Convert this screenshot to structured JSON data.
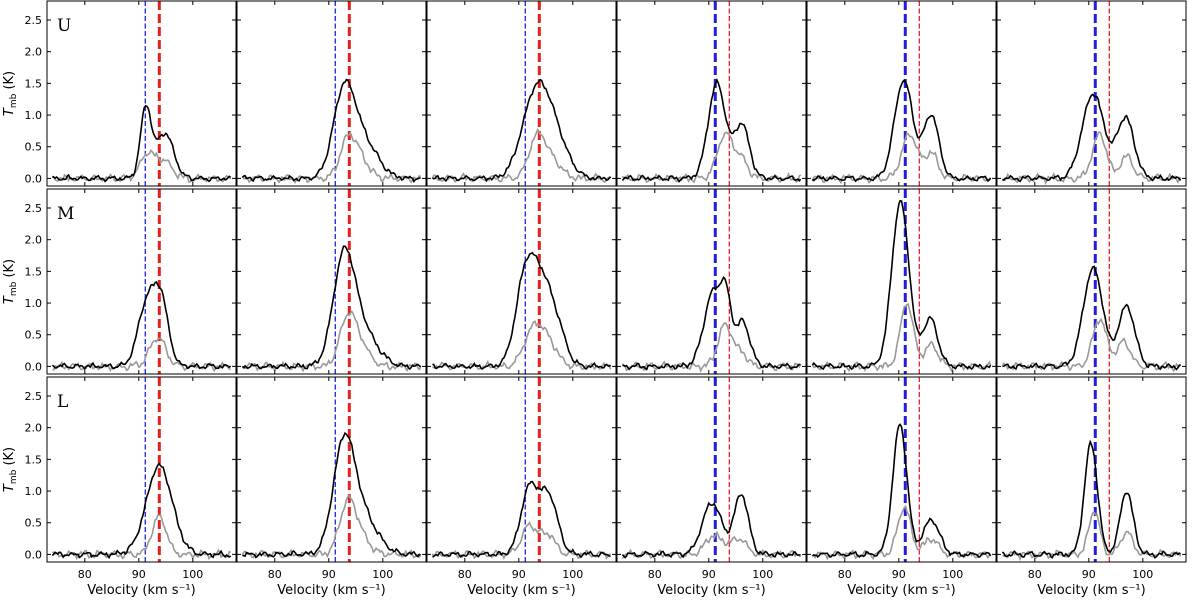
{
  "chart_data": {
    "type": "line",
    "layout": {
      "rows": 3,
      "cols": 6,
      "sharex": true,
      "sharey": true
    },
    "row_labels": [
      "U",
      "M",
      "L"
    ],
    "xlabel": "Velocity (km s⁻¹)",
    "ylabel_main": "T",
    "ylabel_sub": "mb",
    "ylabel_unit": " (K)",
    "xlim": [
      73,
      108
    ],
    "ylim": [
      -0.12,
      2.8
    ],
    "xticks": [
      80,
      90,
      100
    ],
    "yticks": [
      0.0,
      0.5,
      1.0,
      1.5,
      2.0,
      2.5
    ],
    "ytick_labels": [
      "0.0",
      "0.5",
      "1.0",
      "1.5",
      "2.0",
      "2.5"
    ],
    "reference_lines": [
      {
        "velocity": 91.2,
        "color": "#1f1fdc",
        "style": "dashed"
      },
      {
        "velocity": 93.8,
        "color": "#e8201c",
        "style": "dashed"
      }
    ],
    "emphasized_line_by_column": [
      "red",
      "red",
      "red",
      "blue",
      "blue",
      "blue"
    ],
    "series_colors": {
      "primary": "#000000",
      "secondary": "#999999"
    },
    "panels": [
      {
        "row": 0,
        "col": 0,
        "primary": [
          [
            91.3,
            1.1,
            1.0
          ],
          [
            94.8,
            0.72,
            1.6
          ]
        ],
        "secondary": [
          [
            91.5,
            0.35,
            1.3
          ],
          [
            94.5,
            0.28,
            1.6
          ]
        ]
      },
      {
        "row": 0,
        "col": 1,
        "primary": [
          [
            92.8,
            1.32,
            2.0
          ],
          [
            96.5,
            0.55,
            2.6
          ]
        ],
        "secondary": [
          [
            93.6,
            0.6,
            1.5
          ],
          [
            96.0,
            0.25,
            1.6
          ]
        ]
      },
      {
        "row": 0,
        "col": 2,
        "primary": [
          [
            93.3,
            1.36,
            2.6
          ],
          [
            97.0,
            0.45,
            2.4
          ]
        ],
        "secondary": [
          [
            93.5,
            0.68,
            1.6
          ],
          [
            96.5,
            0.22,
            1.6
          ]
        ]
      },
      {
        "row": 0,
        "col": 3,
        "primary": [
          [
            91.5,
            1.5,
            1.6
          ],
          [
            96.1,
            0.85,
            1.4
          ]
        ],
        "secondary": [
          [
            93.0,
            0.7,
            1.4
          ],
          [
            96.0,
            0.3,
            1.2
          ]
        ]
      },
      {
        "row": 0,
        "col": 4,
        "primary": [
          [
            90.9,
            1.55,
            1.7
          ],
          [
            96.0,
            1.0,
            1.4
          ]
        ],
        "secondary": [
          [
            92.0,
            0.7,
            1.4
          ],
          [
            96.0,
            0.4,
            1.2
          ]
        ]
      },
      {
        "row": 0,
        "col": 5,
        "primary": [
          [
            90.8,
            1.34,
            2.0
          ],
          [
            96.8,
            0.95,
            1.6
          ]
        ],
        "secondary": [
          [
            92.0,
            0.7,
            1.3
          ],
          [
            97.0,
            0.35,
            1.2
          ]
        ]
      },
      {
        "row": 1,
        "col": 0,
        "primary": [
          [
            91.4,
            0.95,
            1.6
          ],
          [
            94.1,
            1.0,
            1.4
          ]
        ],
        "secondary": [
          [
            93.5,
            0.45,
            1.5
          ]
        ]
      },
      {
        "row": 1,
        "col": 1,
        "primary": [
          [
            92.8,
            1.68,
            2.0
          ],
          [
            96.5,
            0.5,
            2.6
          ]
        ],
        "secondary": [
          [
            93.5,
            0.75,
            1.5
          ],
          [
            96.0,
            0.3,
            1.6
          ]
        ]
      },
      {
        "row": 1,
        "col": 2,
        "primary": [
          [
            91.2,
            1.35,
            1.8
          ],
          [
            94.5,
            1.2,
            2.0
          ],
          [
            97.5,
            0.35,
            1.6
          ]
        ],
        "secondary": [
          [
            93.0,
            0.65,
            1.8
          ],
          [
            96.0,
            0.25,
            1.5
          ]
        ]
      },
      {
        "row": 1,
        "col": 3,
        "primary": [
          [
            90.8,
            1.15,
            1.7
          ],
          [
            93.2,
            0.85,
            1.0
          ],
          [
            96.3,
            0.7,
            1.3
          ]
        ],
        "secondary": [
          [
            93.0,
            0.65,
            1.3
          ],
          [
            96.0,
            0.2,
            1.2
          ]
        ]
      },
      {
        "row": 1,
        "col": 4,
        "primary": [
          [
            90.3,
            2.6,
            1.6
          ],
          [
            95.8,
            0.75,
            1.4
          ]
        ],
        "secondary": [
          [
            91.5,
            1.0,
            1.2
          ],
          [
            96.0,
            0.35,
            1.2
          ]
        ]
      },
      {
        "row": 1,
        "col": 5,
        "primary": [
          [
            90.8,
            1.55,
            1.8
          ],
          [
            97.0,
            0.95,
            1.5
          ]
        ],
        "secondary": [
          [
            92.0,
            0.75,
            1.3
          ],
          [
            96.5,
            0.4,
            1.2
          ]
        ]
      },
      {
        "row": 2,
        "col": 0,
        "primary": [
          [
            93.8,
            1.4,
            2.4
          ]
        ],
        "secondary": [
          [
            93.8,
            0.6,
            1.3
          ]
        ]
      },
      {
        "row": 2,
        "col": 1,
        "primary": [
          [
            92.8,
            1.7,
            2.0
          ],
          [
            96.5,
            0.55,
            2.6
          ]
        ],
        "secondary": [
          [
            93.5,
            0.8,
            1.5
          ],
          [
            96.0,
            0.25,
            1.6
          ]
        ]
      },
      {
        "row": 2,
        "col": 2,
        "primary": [
          [
            92.0,
            1.05,
            1.6
          ],
          [
            95.6,
            0.9,
            1.6
          ]
        ],
        "secondary": [
          [
            92.0,
            0.45,
            1.5
          ],
          [
            95.5,
            0.3,
            1.3
          ]
        ]
      },
      {
        "row": 2,
        "col": 3,
        "primary": [
          [
            90.6,
            0.82,
            1.8
          ],
          [
            96.0,
            0.95,
            1.3
          ]
        ],
        "secondary": [
          [
            91.0,
            0.3,
            1.6
          ],
          [
            95.5,
            0.25,
            1.4
          ]
        ]
      },
      {
        "row": 2,
        "col": 4,
        "primary": [
          [
            90.2,
            2.05,
            1.3
          ],
          [
            96.0,
            0.55,
            1.5
          ]
        ],
        "secondary": [
          [
            91.0,
            0.75,
            1.2
          ],
          [
            96.0,
            0.25,
            1.3
          ]
        ]
      },
      {
        "row": 2,
        "col": 5,
        "primary": [
          [
            90.4,
            1.75,
            1.2
          ],
          [
            97.0,
            1.0,
            1.2
          ]
        ],
        "secondary": [
          [
            91.0,
            0.7,
            1.0
          ],
          [
            97.0,
            0.35,
            1.1
          ]
        ]
      }
    ]
  }
}
